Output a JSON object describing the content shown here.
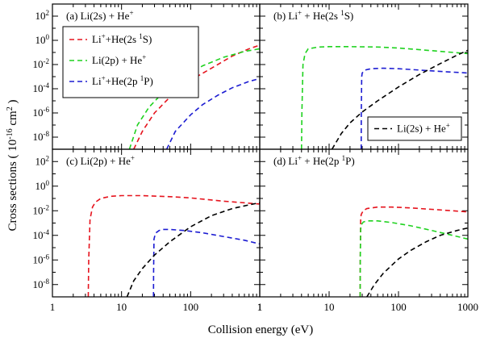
{
  "colors": {
    "red": "#e6141e",
    "green": "#1fd21f",
    "blue": "#1c1cd2",
    "black": "#000000"
  },
  "chart_data": {
    "type": "line",
    "log_x": true,
    "log_y": true,
    "ylabel_main": "Cross sections ( 10",
    "ylabel_exp": "-16",
    "ylabel_unit": "cm",
    "ylabel_unit_exp": "2",
    "xlabel": "Collision energy (eV)",
    "xlim": [
      1,
      1000
    ],
    "ylim": [
      1e-09,
      1000.0
    ],
    "x_ticks_left": [
      "1",
      "10",
      "100",
      "1"
    ],
    "x_ticks_right": [
      "1",
      "10",
      "100",
      "1000"
    ],
    "y_tick_base": "10",
    "y_tick_exponents": [
      "2",
      "0",
      "-2",
      "-4",
      "-6",
      "-8"
    ],
    "panels": [
      {
        "id": "a",
        "title": "(a)  Li(2s) + He",
        "title_sup": "+",
        "legend": [
          {
            "text": "Li",
            "sup": "+",
            "rest": "+He(2s ",
            "sup2": "1",
            "end": "S)",
            "color": "red"
          },
          {
            "text": "Li(2p) + He",
            "sup": "+",
            "rest": "",
            "sup2": "",
            "end": "",
            "color": "green"
          },
          {
            "text": "Li",
            "sup": "+",
            "rest": "+He(2p ",
            "sup2": "1",
            "end": "P)",
            "color": "blue"
          }
        ],
        "series": [
          {
            "color": "red",
            "x": [
              15,
              20,
              30,
              50,
              100,
              200,
              400,
              700,
              1000
            ],
            "y": [
              1e-09,
              3e-08,
              1e-06,
              2e-05,
              0.0005,
              0.005,
              0.05,
              0.2,
              0.4
            ]
          },
          {
            "color": "green",
            "x": [
              13,
              17,
              25,
              40,
              80,
              150,
              300,
              600,
              1000
            ],
            "y": [
              1e-09,
              1e-07,
              3e-06,
              5e-05,
              0.001,
              0.008,
              0.04,
              0.12,
              0.2
            ]
          },
          {
            "color": "blue",
            "x": [
              45,
              60,
              100,
              150,
              250,
              400,
              700,
              1000
            ],
            "y": [
              1e-09,
              3e-08,
              7e-07,
              5e-06,
              3e-05,
              0.00012,
              0.0004,
              0.0007
            ]
          }
        ]
      },
      {
        "id": "b",
        "title": "(b)  Li",
        "title_sup": "+",
        "title_rest": " + He(2s ",
        "title_sup2": "1",
        "title_end": "S)",
        "legend": [
          {
            "text": "Li(2s) + He",
            "sup": "+",
            "rest": "",
            "sup2": "",
            "end": "",
            "color": "black"
          }
        ],
        "series": [
          {
            "color": "green",
            "x": [
              4,
              4.05,
              4.2,
              4.5,
              5,
              7,
              10,
              20,
              50,
              100,
              200,
              500,
              1000
            ],
            "y": [
              1e-09,
              1e-06,
              0.01,
              0.08,
              0.2,
              0.28,
              0.3,
              0.3,
              0.28,
              0.23,
              0.17,
              0.11,
              0.08
            ]
          },
          {
            "color": "blue",
            "x": [
              29,
              29.1,
              29.5,
              30,
              33,
              40,
              60,
              100,
              200,
              500,
              1000
            ],
            "y": [
              1e-09,
              1e-06,
              0.001,
              0.002,
              0.0035,
              0.0045,
              0.005,
              0.0045,
              0.0035,
              0.0025,
              0.002
            ]
          },
          {
            "color": "black",
            "x": [
              11,
              15,
              20,
              30,
              50,
              100,
              200,
              400,
              700,
              1000
            ],
            "y": [
              1e-09,
              2e-08,
              1.5e-07,
              1.2e-06,
              1e-05,
              0.00014,
              0.0015,
              0.012,
              0.06,
              0.15
            ]
          }
        ]
      },
      {
        "id": "c",
        "title": "(c)  Li(2p) + He",
        "title_sup": "+",
        "legend": [],
        "series": [
          {
            "color": "red",
            "x": [
              3.3,
              3.35,
              3.5,
              3.8,
              4.2,
              5,
              7,
              10,
              20,
              50,
              100,
              300,
              1000
            ],
            "y": [
              1e-09,
              1e-06,
              0.002,
              0.02,
              0.05,
              0.1,
              0.15,
              0.17,
              0.17,
              0.14,
              0.11,
              0.06,
              0.035
            ]
          },
          {
            "color": "blue",
            "x": [
              29,
              29.1,
              29.5,
              31,
              35,
              40,
              50,
              80,
              150,
              300,
              600,
              1000
            ],
            "y": [
              1e-09,
              1e-07,
              5e-05,
              0.00015,
              0.00025,
              0.0003,
              0.0003,
              0.00025,
              0.00016,
              8e-05,
              4e-05,
              2e-05
            ]
          },
          {
            "color": "black",
            "x": [
              12,
              15,
              20,
              30,
              50,
              100,
              200,
              400,
              700,
              1000
            ],
            "y": [
              1e-09,
              2e-08,
              2e-07,
              2.5e-06,
              3e-05,
              0.0005,
              0.004,
              0.015,
              0.03,
              0.045
            ]
          }
        ]
      },
      {
        "id": "d",
        "title": "(d)  Li",
        "title_sup": "+",
        "title_rest": " + He(2p ",
        "title_sup2": "1",
        "title_end": "P)",
        "legend": [],
        "series": [
          {
            "color": "red",
            "x": [
              28,
              28.1,
              28.5,
              29,
              31,
              35,
              50,
              80,
              150,
              300,
              600,
              1000
            ],
            "y": [
              1e-09,
              1e-06,
              0.002,
              0.005,
              0.01,
              0.015,
              0.02,
              0.02,
              0.017,
              0.013,
              0.01,
              0.008
            ]
          },
          {
            "color": "green",
            "x": [
              28,
              28.1,
              28.5,
              29,
              31,
              35,
              50,
              80,
              150,
              300,
              600,
              1000
            ],
            "y": [
              1e-09,
              1e-06,
              0.0003,
              0.0007,
              0.0012,
              0.0015,
              0.0015,
              0.0011,
              0.0006,
              0.00025,
              0.0001,
              5e-05
            ]
          },
          {
            "color": "black",
            "x": [
              35,
              45,
              60,
              100,
              150,
              250,
              400,
              700,
              1000
            ],
            "y": [
              1e-09,
              1e-08,
              8e-08,
              1.2e-06,
              6e-06,
              3e-05,
              0.0001,
              0.00025,
              0.0004
            ]
          }
        ]
      }
    ]
  }
}
